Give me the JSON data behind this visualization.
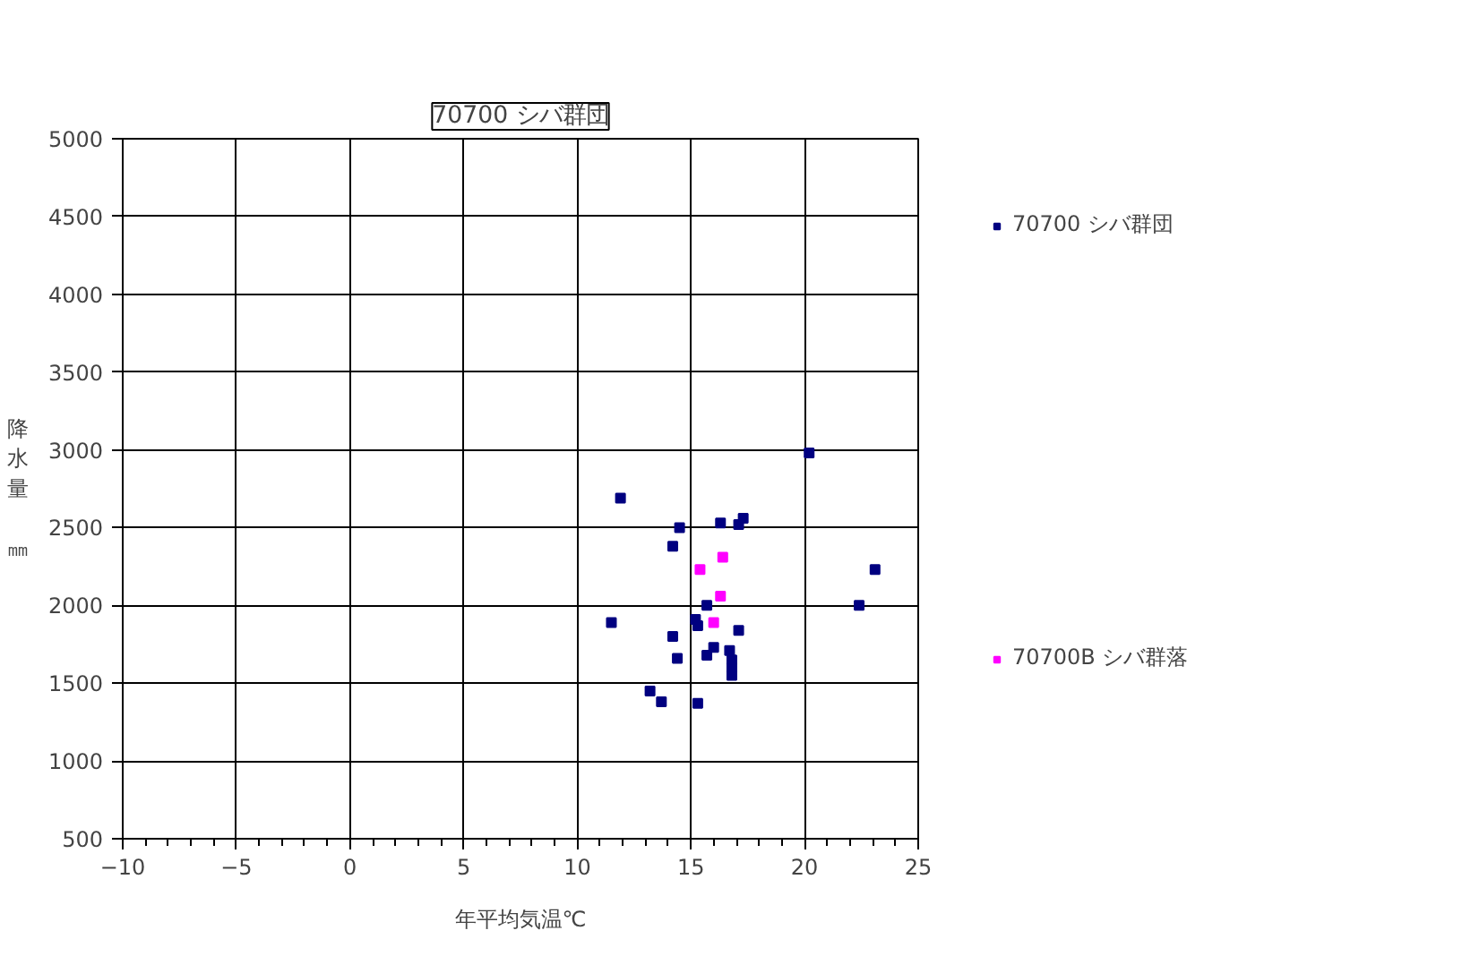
{
  "chart_data": {
    "type": "scatter",
    "title": "70700 シバ群団",
    "xlabel": "年平均気温℃",
    "ylabel": "降水量㎜",
    "xlim": [
      -10,
      25
    ],
    "xticks": [
      -10,
      -5,
      0,
      5,
      10,
      15,
      20,
      25
    ],
    "ylim": [
      500,
      5000
    ],
    "yticks": [
      500,
      1000,
      1500,
      2000,
      2500,
      3000,
      3500,
      4000,
      4500,
      5000
    ],
    "grid": true,
    "legend": "right",
    "marker": "square",
    "series": [
      {
        "name": "70700 シバ群団",
        "color": "#000080",
        "x": [
          20.2,
          11.9,
          14.5,
          16.3,
          17.3,
          17.1,
          14.2,
          23.1,
          22.4,
          15.7,
          11.5,
          15.2,
          15.3,
          17.1,
          14.2,
          16.0,
          15.7,
          16.7,
          14.4,
          16.8,
          16.8,
          16.8,
          13.2,
          13.7,
          15.3
        ],
        "values": [
          2980,
          2690,
          2500,
          2530,
          2560,
          2520,
          2380,
          2230,
          2000,
          2000,
          1890,
          1910,
          1870,
          1840,
          1800,
          1730,
          1680,
          1710,
          1660,
          1650,
          1600,
          1550,
          1450,
          1380,
          1370
        ]
      },
      {
        "name": "70700B シバ群落",
        "color": "#ff00ff",
        "x": [
          16.4,
          15.4,
          16.3,
          16.0
        ],
        "values": [
          2310,
          2230,
          2060,
          1890
        ]
      }
    ]
  }
}
